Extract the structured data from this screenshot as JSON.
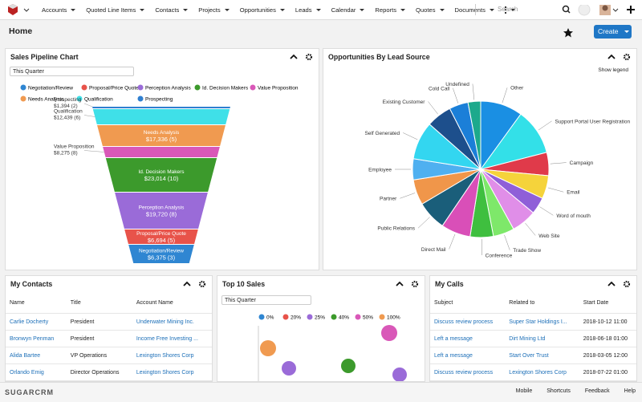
{
  "nav": {
    "items": [
      "Accounts",
      "Quoted Line Items",
      "Contacts",
      "Projects",
      "Opportunities",
      "Leads",
      "Calendar",
      "Reports",
      "Quotes",
      "Documents"
    ],
    "search": "Search"
  },
  "header": {
    "title": "Home",
    "create": "Create"
  },
  "pipeline": {
    "title": "Sales Pipeline Chart",
    "filter": "This Quarter",
    "legend": [
      {
        "name": "Negotiation/Review",
        "color": "#2f86d2"
      },
      {
        "name": "Proposal/Price Quote",
        "color": "#e8534a"
      },
      {
        "name": "Perception Analysis",
        "color": "#9a6bd8"
      },
      {
        "name": "Id. Decision Makers",
        "color": "#3c9a2c"
      },
      {
        "name": "Value Proposition",
        "color": "#d958b8"
      },
      {
        "name": "Needs Analysis",
        "color": "#f09a50"
      },
      {
        "name": "Qualification",
        "color": "#3fe0e8"
      },
      {
        "name": "Prospecting",
        "color": "#2f7fd0"
      }
    ],
    "funnel": [
      {
        "name": "Prospecting",
        "amount": "$1,394 (2)",
        "color": "#2f7fd0"
      },
      {
        "name": "Qualification",
        "amount": "$12,439 (6)",
        "color": "#3fe0e8"
      },
      {
        "name": "Needs Analysis",
        "amount": "$17,336 (5)",
        "color": "#f09a50"
      },
      {
        "name": "Value Proposition",
        "amount": "$8,275 (8)",
        "color": "#d958b8"
      },
      {
        "name": "Id. Decision Makers",
        "amount": "$23,014 (10)",
        "color": "#3c9a2c"
      },
      {
        "name": "Perception Analysis",
        "amount": "$19,720 (8)",
        "color": "#9a6bd8"
      },
      {
        "name": "Proposal/Price Quote",
        "amount": "$6,694 (5)",
        "color": "#e8534a"
      },
      {
        "name": "Negotiation/Review",
        "amount": "$6,375 (3)",
        "color": "#2f86d2"
      }
    ]
  },
  "leadsource": {
    "title": "Opportunities By Lead Source",
    "show_legend": "Show legend",
    "chart_data": {
      "type": "pie",
      "labels": [
        "Other",
        "Support Portal User Registration",
        "Campaign",
        "Email",
        "Word of mouth",
        "Web Site",
        "Trade Show",
        "Conference",
        "Direct Mail",
        "Public Relations",
        "Partner",
        "Employee",
        "Self Generated",
        "Existing Customer",
        "Cold Call",
        "Undefined"
      ],
      "values": [
        10,
        11,
        5.5,
        5.5,
        4,
        6,
        5,
        5.5,
        7,
        7,
        6,
        5,
        9,
        6,
        4.5,
        3
      ],
      "colors": [
        "#1a8fe3",
        "#33e0e8",
        "#e03a4a",
        "#f5d33b",
        "#8f5fd8",
        "#e08ee8",
        "#7ee86a",
        "#3fbf3f",
        "#d94fb8",
        "#1a5e7a",
        "#f0964a",
        "#4fb0f0",
        "#33d6f0",
        "#1d4f8c",
        "#1b7fd8",
        "#1ca98c"
      ]
    }
  },
  "contacts": {
    "title": "My Contacts",
    "columns": [
      "Name",
      "Title",
      "Account Name"
    ],
    "rows": [
      [
        "Carlie Docherty",
        "President",
        "Underwater Mining Inc."
      ],
      [
        "Bronwyn Penman",
        "President",
        "Income Free Investing ..."
      ],
      [
        "Alida Bartee",
        "VP Operations",
        "Lexington Shores Corp"
      ],
      [
        "Orlando Emig",
        "Director Operations",
        "Lexington Shores Corp"
      ]
    ]
  },
  "sales": {
    "title": "Top 10 Sales",
    "filter": "This Quarter",
    "legend": [
      {
        "name": "0%",
        "color": "#2f86d2"
      },
      {
        "name": "20%",
        "color": "#e8534a"
      },
      {
        "name": "25%",
        "color": "#9a6bd8"
      },
      {
        "name": "40%",
        "color": "#3c9a2c"
      },
      {
        "name": "50%",
        "color": "#d958b8"
      },
      {
        "name": "100%",
        "color": "#f09a50"
      }
    ]
  },
  "calls": {
    "title": "My Calls",
    "columns": [
      "Subject",
      "Related to",
      "Start Date"
    ],
    "rows": [
      [
        "Discuss review process",
        "Super Star Holdings I...",
        "2018-10-12 11:00"
      ],
      [
        "Left a message",
        "Dirt Mining Ltd",
        "2018-06-18 01:00"
      ],
      [
        "Left a message",
        "Start Over Trust",
        "2018-03-05 12:00"
      ],
      [
        "Discuss review process",
        "Lexington Shores Corp",
        "2018-07-22 01:00"
      ]
    ]
  },
  "footer": {
    "logo": "SUGARCRM",
    "links": [
      "Mobile",
      "Shortcuts",
      "Feedback",
      "Help"
    ]
  }
}
